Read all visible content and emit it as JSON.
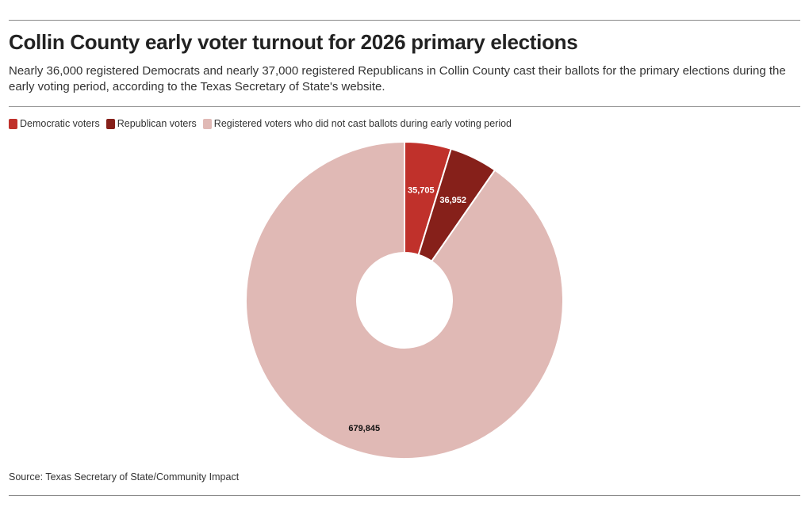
{
  "title": "Collin County early voter turnout for 2026 primary elections",
  "subtitle": "Nearly 36,000 registered Democrats and nearly 37,000 registered Republicans in Collin County cast their ballots for the primary elections during the early voting period, according to the Texas Secretary of State's website.",
  "source": "Source: Texas Secretary of State/Community Impact",
  "chart_data": {
    "type": "pie",
    "subtype": "donut",
    "title": "Collin County early voter turnout for 2026 primary elections",
    "categories": [
      "Democratic voters",
      "Republican voters",
      "Registered voters who did not cast ballots during early voting period"
    ],
    "values": [
      35705,
      36952,
      679845
    ],
    "value_labels": [
      "35,705",
      "36,952",
      "679,845"
    ],
    "colors": [
      "#c0312b",
      "#86201a",
      "#e0b9b5"
    ],
    "label_colors": [
      "#ffffff",
      "#ffffff",
      "#111111"
    ],
    "legend_position": "top-left"
  }
}
